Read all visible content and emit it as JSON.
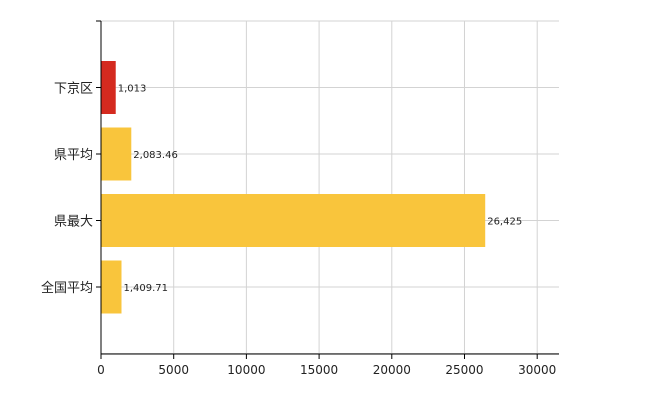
{
  "chart_data": {
    "type": "bar",
    "orientation": "horizontal",
    "title": "",
    "xlabel": "",
    "ylabel": "",
    "categories": [
      "下京区",
      "県平均",
      "県最大",
      "全国平均"
    ],
    "values": [
      1013,
      2083.46,
      26425,
      1409.71
    ],
    "data_labels": [
      "1,013",
      "2,083.46",
      "26,425",
      "1,409.71"
    ],
    "bar_colors": [
      "#d42a1f",
      "#f9c53c",
      "#f9c53c",
      "#f9c53c"
    ],
    "xlim": [
      0,
      31500
    ],
    "xticks": [
      0,
      5000,
      10000,
      15000,
      20000,
      25000,
      30000
    ],
    "xtick_labels": [
      "0",
      "5000",
      "10000",
      "15000",
      "20000",
      "25000",
      "30000"
    ],
    "grid": true,
    "legend": "none"
  }
}
